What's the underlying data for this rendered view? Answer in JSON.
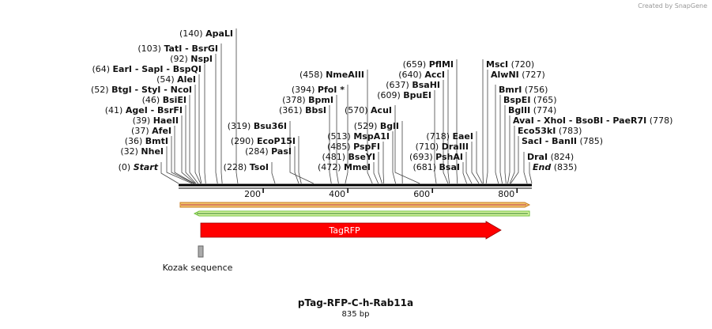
{
  "credit": "Created by SnapGene",
  "title": "pTag-RFP-C-h-Rab11a",
  "length": {
    "value": 835,
    "label": "835 bp"
  },
  "ruler_ticks": [
    200,
    400,
    600,
    800
  ],
  "features": {
    "tagrfp": "TagRFP",
    "kozak": "Kozak sequence"
  },
  "sites": [
    {
      "pos": {
        "value": 140,
        "label": "(140)"
      },
      "name": "ApaLI"
    },
    {
      "pos": {
        "value": 103,
        "label": "(103)"
      },
      "name": "TatI  - BsrGI"
    },
    {
      "pos": {
        "value": 92,
        "label": "(92)"
      },
      "name": "NspI"
    },
    {
      "pos": {
        "value": 64,
        "label": "(64)"
      },
      "name": "EarI  - SapI  - BspQI"
    },
    {
      "pos": {
        "value": 54,
        "label": "(54)"
      },
      "name": "AleI"
    },
    {
      "pos": {
        "value": 52,
        "label": "(52)"
      },
      "name": "BtgI  - StyI  - NcoI"
    },
    {
      "pos": {
        "value": 46,
        "label": "(46)"
      },
      "name": "BsiEI"
    },
    {
      "pos": {
        "value": 41,
        "label": "(41)"
      },
      "name": "AgeI  - BsrFI"
    },
    {
      "pos": {
        "value": 39,
        "label": "(39)"
      },
      "name": "HaeII"
    },
    {
      "pos": {
        "value": 37,
        "label": "(37)"
      },
      "name": "AfeI"
    },
    {
      "pos": {
        "value": 36,
        "label": "(36)"
      },
      "name": "BmtI"
    },
    {
      "pos": {
        "value": 32,
        "label": "(32)"
      },
      "name": "NheI"
    },
    {
      "pos": {
        "value": 0,
        "label": "(0)"
      },
      "name": "Start"
    },
    {
      "pos": {
        "value": 458,
        "label": "(458)"
      },
      "name": "NmeAIII"
    },
    {
      "pos": {
        "value": 394,
        "label": "(394)"
      },
      "name": "PfoI *"
    },
    {
      "pos": {
        "value": 378,
        "label": "(378)"
      },
      "name": "BpmI"
    },
    {
      "pos": {
        "value": 361,
        "label": "(361)"
      },
      "name": "BbsI"
    },
    {
      "pos": {
        "value": 319,
        "label": "(319)"
      },
      "name": "Bsu36I"
    },
    {
      "pos": {
        "value": 290,
        "label": "(290)"
      },
      "name": "EcoP15I"
    },
    {
      "pos": {
        "value": 284,
        "label": "(284)"
      },
      "name": "PasI"
    },
    {
      "pos": {
        "value": 228,
        "label": "(228)"
      },
      "name": "TsoI"
    },
    {
      "pos": {
        "value": 513,
        "label": "(513)"
      },
      "name": "MspA1I"
    },
    {
      "pos": {
        "value": 485,
        "label": "(485)"
      },
      "name": "PspFI"
    },
    {
      "pos": {
        "value": 481,
        "label": "(481)"
      },
      "name": "BseYI"
    },
    {
      "pos": {
        "value": 472,
        "label": "(472)"
      },
      "name": "MmeI"
    },
    {
      "pos": {
        "value": 529,
        "label": "(529)"
      },
      "name": "BglI"
    },
    {
      "pos": {
        "value": 570,
        "label": "(570)"
      },
      "name": "AcuI"
    },
    {
      "pos": {
        "value": 609,
        "label": "(609)"
      },
      "name": "BpuEI"
    },
    {
      "pos": {
        "value": 637,
        "label": "(637)"
      },
      "name": "BsaHI"
    },
    {
      "pos": {
        "value": 640,
        "label": "(640)"
      },
      "name": "AccI"
    },
    {
      "pos": {
        "value": 659,
        "label": "(659)"
      },
      "name": "PflMI"
    },
    {
      "pos": {
        "value": 718,
        "label": "(718)"
      },
      "name": "EaeI"
    },
    {
      "pos": {
        "value": 710,
        "label": "(710)"
      },
      "name": "DraIII"
    },
    {
      "pos": {
        "value": 693,
        "label": "(693)"
      },
      "name": "PshAI"
    },
    {
      "pos": {
        "value": 681,
        "label": "(681)"
      },
      "name": "BsaI"
    },
    {
      "pos": {
        "value": 720,
        "label": "(720)"
      },
      "name": "MscI"
    },
    {
      "pos": {
        "value": 727,
        "label": "(727)"
      },
      "name": "AlwNI"
    },
    {
      "pos": {
        "value": 756,
        "label": "(756)"
      },
      "name": "BmrI"
    },
    {
      "pos": {
        "value": 765,
        "label": "(765)"
      },
      "name": "BspEI"
    },
    {
      "pos": {
        "value": 774,
        "label": "(774)"
      },
      "name": "BglII"
    },
    {
      "pos": {
        "value": 778,
        "label": "(778)"
      },
      "name": "AvaI  - XhoI  - BsoBI  - PaeR7I"
    },
    {
      "pos": {
        "value": 783,
        "label": "(783)"
      },
      "name": "Eco53kI"
    },
    {
      "pos": {
        "value": 785,
        "label": "(785)"
      },
      "name": "SacI  - BanII"
    },
    {
      "pos": {
        "value": 824,
        "label": "(824)"
      },
      "name": "DraI"
    },
    {
      "pos": {
        "value": 835,
        "label": "(835)"
      },
      "name": "End"
    }
  ]
}
